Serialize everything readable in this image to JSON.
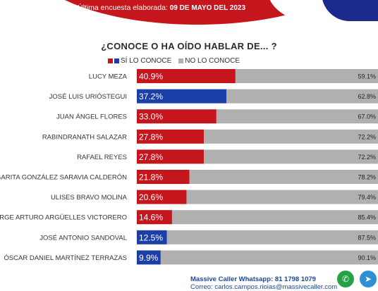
{
  "banner": {
    "text": "Última encuesta elaborada:",
    "date": "09 DE MAYO DEL 2023"
  },
  "chart_data": {
    "type": "bar",
    "title": "¿CONOCE O HA OÍDO HABLAR DE... ?",
    "legend": [
      {
        "name": "SÍ LO CONOCE",
        "colors": [
          "#c4161c",
          "#1b3fa6"
        ]
      },
      {
        "name": "NO LO CONOCE",
        "color": "#b0b0b0"
      }
    ],
    "categories": [
      "LUCY MEZA",
      "JOSÉ LUIS URIÓSTEGUI",
      "JUAN ÁNGEL FLORES",
      "RABINDRANATH SALAZAR",
      "RAFAEL REYES",
      "GARITA GONZÁLEZ SARAVIA CALDERÓN",
      "ULISES BRAVO MOLINA",
      "JORGE ARTURO ARGÜELLES VICTORERO",
      "JOSÉ ANTONIO SANDOVAL",
      "ÓSCAR DANIEL MARTÍNEZ TERRAZAS"
    ],
    "series": [
      {
        "name": "SÍ LO CONOCE",
        "values": [
          40.9,
          37.2,
          33.0,
          27.8,
          27.8,
          21.8,
          20.6,
          14.6,
          12.5,
          9.9
        ],
        "labels": [
          "40.9%",
          "37.2%",
          "33.0%",
          "27.8%",
          "27.8%",
          "21.8%",
          "20.6%",
          "14.6%",
          "12.5%",
          "9.9%"
        ],
        "colors": [
          "#c4161c",
          "#1b3fa6",
          "#c4161c",
          "#c4161c",
          "#c4161c",
          "#c4161c",
          "#c4161c",
          "#c4161c",
          "#1b3fa6",
          "#1b3fa6"
        ]
      },
      {
        "name": "NO LO CONOCE",
        "values": [
          59.1,
          62.8,
          67.0,
          72.2,
          72.2,
          78.2,
          79.4,
          85.4,
          87.5,
          90.1
        ],
        "labels": [
          "59.1%",
          "62.8%",
          "67.0%",
          "72.2%",
          "72.2%",
          "78.2%",
          "79.4%",
          "85.4%",
          "87.5%",
          "90.1%"
        ],
        "color": "#b0b0b0"
      }
    ],
    "xlim": [
      0,
      100
    ],
    "grid": false,
    "legend_placement": "top"
  },
  "footer": {
    "line1": "Massive Caller Whatsapp: 81 1798 1079",
    "line2": "Correo: carlos.campos.rioias@massivecaller.com"
  },
  "icons": {
    "whatsapp": "whatsapp-icon",
    "telegram": "telegram-icon"
  }
}
